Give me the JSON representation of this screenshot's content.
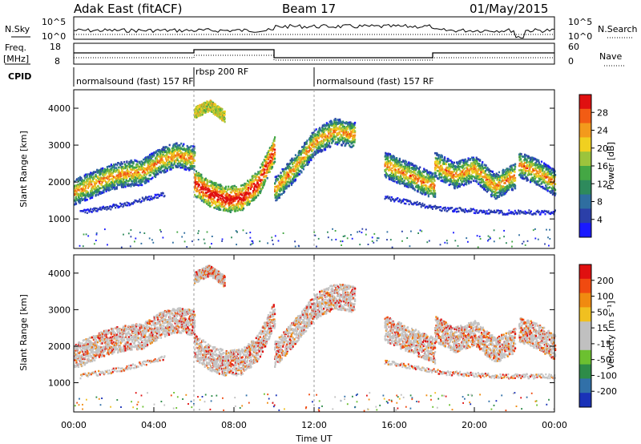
{
  "header": {
    "station": "Adak East (fitACF)",
    "beam": "Beam 17",
    "date": "01/May/2015"
  },
  "top_panels": {
    "nsky_label": "N.Sky",
    "nsearch_label": "N.Search",
    "noise_ticks_left": [
      "10^5",
      "10^0"
    ],
    "noise_ticks_right": [
      "10^5",
      "10^0"
    ],
    "freq_label_top": "Freq.",
    "freq_label_bottom": "[MHz]",
    "freq_ticks_left": [
      "18",
      "8"
    ],
    "nave_label": "Nave",
    "nave_ticks_right": [
      "60",
      "0"
    ],
    "cpid_label": "CPID",
    "cpid_segments": [
      {
        "start_h": 0,
        "end_h": 6,
        "label": "normalsound (fast) 157 RF"
      },
      {
        "start_h": 6,
        "end_h": 12,
        "label": "rbsp 200 RF"
      },
      {
        "start_h": 12,
        "end_h": 24,
        "label": "normalsound (fast) 157 RF"
      }
    ]
  },
  "chart_data": [
    {
      "type": "heatmap",
      "title": "",
      "parameter": "Power",
      "ylabel": "Slant Range [km]",
      "xlabel": "",
      "xlim": [
        0,
        24
      ],
      "ylim": [
        200,
        4500
      ],
      "yticks": [
        "1000",
        "2000",
        "3000",
        "4000"
      ],
      "colorbar": {
        "label": "Power [dB]",
        "range": [
          0,
          32
        ],
        "ticks": [
          "4",
          "8",
          "12",
          "16",
          "20",
          "24",
          "28"
        ],
        "colors": [
          "#1a1aff",
          "#2b3fa8",
          "#2f6ea0",
          "#2e8a5c",
          "#44a744",
          "#9cc43c",
          "#f0d020",
          "#f39a1c",
          "#f25c14",
          "#e01010"
        ]
      },
      "echo_bands": [
        {
          "x_start": 0.0,
          "x_end": 6.0,
          "ranges": [
            1750,
            1950,
            2150,
            2250,
            2300,
            2600,
            2750,
            2650
          ]
        },
        {
          "x_start": 6.0,
          "x_end": 10.0,
          "ranges": [
            2000,
            1700,
            1550,
            1600,
            2000,
            2900
          ]
        },
        {
          "x_start": 10.0,
          "x_end": 14.0,
          "ranges": [
            1800,
            2400,
            3100,
            3400,
            3300
          ]
        },
        {
          "x_start": 15.5,
          "x_end": 18.0,
          "ranges": [
            2500,
            2200,
            1900
          ]
        },
        {
          "x_start": 18.0,
          "x_end": 22.0,
          "ranges": [
            2500,
            2200,
            2400,
            1900,
            2200
          ]
        },
        {
          "x_start": 22.2,
          "x_end": 24.0,
          "ranges": [
            2500,
            2300,
            2000
          ]
        },
        {
          "x_start": 6.0,
          "x_end": 7.5,
          "ranges": [
            3900,
            4100,
            3800
          ]
        }
      ],
      "lower_band": [
        {
          "x_start": 0.3,
          "x_end": 4.5,
          "ranges": [
            1200,
            1400,
            1700
          ]
        },
        {
          "x_start": 15.5,
          "x_end": 24.0,
          "ranges": [
            1600,
            1300,
            1200,
            1200
          ]
        }
      ]
    },
    {
      "type": "heatmap",
      "title": "",
      "parameter": "Velocity",
      "ylabel": "Slant Range [km]",
      "xlabel": "Time UT",
      "xlim": [
        0,
        24
      ],
      "ylim": [
        200,
        4500
      ],
      "xticks": [
        "00:00",
        "04:00",
        "08:00",
        "12:00",
        "16:00",
        "20:00",
        "00:00"
      ],
      "yticks": [
        "1000",
        "2000",
        "3000",
        "4000"
      ],
      "colorbar": {
        "label": "Velocity [m s⁻¹]",
        "range": [
          -250,
          250
        ],
        "ticks": [
          "200",
          "100",
          "50",
          "15",
          "-15",
          "-50",
          "-100",
          "-200"
        ],
        "colors": [
          "#1a32b8",
          "#3170a8",
          "#2e8c48",
          "#6cc030",
          "#c0c0c0",
          "#c0c0c0",
          "#f0c020",
          "#f08a10",
          "#f04a10",
          "#e01010"
        ]
      }
    }
  ]
}
